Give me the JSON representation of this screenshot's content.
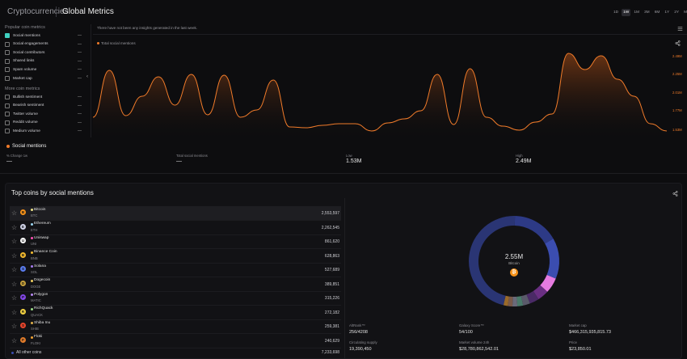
{
  "header": {
    "crumb_parent": "Cryptocurrencies",
    "crumb_current": "Global Metrics",
    "ranges": [
      "1D",
      "1W",
      "1M",
      "3M",
      "6M",
      "1Y",
      "2Y",
      "MAX"
    ],
    "active_range": "1W"
  },
  "metrics_panel": {
    "popular_title": "Popular coin metrics",
    "popular": [
      {
        "label": "Social mentions",
        "value": "—",
        "checked": true
      },
      {
        "label": "Social engagements",
        "value": "—",
        "checked": false
      },
      {
        "label": "Social contributors",
        "value": "—",
        "checked": false
      },
      {
        "label": "Shared links",
        "value": "—",
        "checked": false
      },
      {
        "label": "Spam volume",
        "value": "—",
        "checked": false
      },
      {
        "label": "Market cap",
        "value": "—",
        "checked": false
      }
    ],
    "more_title": "More coin metrics",
    "more": [
      {
        "label": "Bullish sentiment",
        "value": "—",
        "checked": false
      },
      {
        "label": "Bearish sentiment",
        "value": "—",
        "checked": false
      },
      {
        "label": "Twitter volume",
        "value": "—",
        "checked": false
      },
      {
        "label": "Reddit volume",
        "value": "—",
        "checked": false
      },
      {
        "label": "Medium volume",
        "value": "—",
        "checked": false
      }
    ]
  },
  "chart": {
    "notice": "There have not been any insights generated in the last week.",
    "legend": "Total social mentions",
    "colors": {
      "line": "#f07b2a",
      "fill_top": "#7a3a14"
    }
  },
  "chart_data": {
    "type": "area",
    "title": "",
    "series": [
      {
        "name": "Total social mentions",
        "values": [
          1.7,
          2.28,
          1.72,
          1.96,
          2.2,
          1.85,
          2.23,
          1.73,
          2.22,
          1.7,
          1.79,
          2.16,
          1.58,
          1.57,
          1.6,
          1.62,
          1.62,
          1.53,
          1.63,
          1.68,
          1.78,
          2.23,
          1.61,
          2.3,
          1.7,
          1.59,
          1.54,
          1.64,
          1.74,
          2.49,
          2.29,
          2.46,
          2.17,
          1.96,
          1.62,
          1.53
        ]
      }
    ],
    "y_ticks": [
      "2.49M",
      "2.25M",
      "2.01M",
      "1.77M",
      "1.53M"
    ],
    "ylim": [
      1.53,
      2.49
    ],
    "grid": false
  },
  "stats": {
    "title": "Social mentions",
    "change_label": "% Change 1w",
    "change_value": "—",
    "total_label": "Total social mentions",
    "total_value": "—",
    "low_label": "Low",
    "low_value": "1.53M",
    "high_label": "High",
    "high_value": "2.49M"
  },
  "coins": {
    "title": "Top coins by social mentions",
    "rows": [
      {
        "name": "Bitcoin",
        "ticker": "BTC",
        "value": "2,553,597",
        "color": "#f7931a",
        "dot": "#f0e68c",
        "glyph": "B"
      },
      {
        "name": "Ethereum",
        "ticker": "ETH",
        "value": "2,262,545",
        "color": "#cfd2e6",
        "dot": "#9ad6f0",
        "glyph": "E"
      },
      {
        "name": "Uniswap",
        "ticker": "UNI",
        "value": "861,620",
        "color": "#ffffff",
        "dot": "#ff4fb5",
        "glyph": "U"
      },
      {
        "name": "Binance Coin",
        "ticker": "BNB",
        "value": "628,863",
        "color": "#f3ba2f",
        "dot": "#f3ba2f",
        "glyph": "B"
      },
      {
        "name": "Solana",
        "ticker": "SOL",
        "value": "527,689",
        "color": "#5b7df0",
        "dot": "#a57af0",
        "glyph": "S"
      },
      {
        "name": "Dogecoin",
        "ticker": "DOGE",
        "value": "389,851",
        "color": "#c8a23c",
        "dot": "#f0d060",
        "glyph": "D"
      },
      {
        "name": "Polygon",
        "ticker": "MATIC",
        "value": "315,226",
        "color": "#8247e5",
        "dot": "#b98af5",
        "glyph": "P"
      },
      {
        "name": "RichQuack",
        "ticker": "QUACK",
        "value": "272,182",
        "color": "#f5d442",
        "dot": "#9de08a",
        "glyph": "R"
      },
      {
        "name": "Shiba Inu",
        "ticker": "SHIB",
        "value": "259,381",
        "color": "#e8452c",
        "dot": "#e0b04a",
        "glyph": "S"
      },
      {
        "name": "Floki",
        "ticker": "FLOKI",
        "value": "240,629",
        "color": "#e07b2a",
        "dot": "#f0a030",
        "glyph": "F"
      }
    ],
    "all_other_label": "All other coins",
    "all_other_value": "7,233,698"
  },
  "donut": {
    "center_value": "2.55M",
    "center_name": "Bitcoin",
    "segments": [
      {
        "value": 2553597,
        "color": "#2d3a86"
      },
      {
        "value": 2262545,
        "color": "#3b4db0"
      },
      {
        "value": 861620,
        "color": "#e67be0"
      },
      {
        "value": 628863,
        "color": "#6a2f82"
      },
      {
        "value": 527689,
        "color": "#4a2a66"
      },
      {
        "value": 389851,
        "color": "#5a5a6a"
      },
      {
        "value": 315226,
        "color": "#4a7a6a"
      },
      {
        "value": 272182,
        "color": "#6a6a7a"
      },
      {
        "value": 259381,
        "color": "#7a5a4a"
      },
      {
        "value": 240629,
        "color": "#9a6a2a"
      },
      {
        "value": 7233698,
        "color": "#2a3574"
      }
    ]
  },
  "coin_stats": {
    "altrank_label": "AltRank™",
    "altrank_value": "256/4208",
    "galaxy_label": "Galaxy Score™",
    "galaxy_value": "54/100",
    "mcap_label": "Market cap",
    "mcap_value": "$466,315,935,815.73",
    "supply_label": "Circulating supply",
    "supply_value": "19,390,450",
    "vol_label": "Market volume 24h",
    "vol_value": "$28,780,862,542.01",
    "price_label": "Price",
    "price_value": "$23,850.01"
  }
}
